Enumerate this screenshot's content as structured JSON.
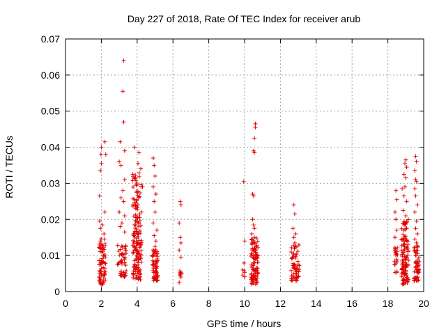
{
  "chart_data": {
    "type": "scatter",
    "title": "Day 227 of 2018, Rate Of TEC Index for receiver arub",
    "xlabel": "GPS time / hours",
    "ylabel": "ROTI / TECUs",
    "xlim": [
      0,
      20
    ],
    "ylim": [
      0,
      0.07
    ],
    "xticks": [
      0,
      2,
      4,
      6,
      8,
      10,
      12,
      14,
      16,
      18,
      20
    ],
    "yticks": [
      0,
      0.01,
      0.02,
      0.03,
      0.04,
      0.05,
      0.06,
      0.07
    ],
    "xtick_labels": [
      "0",
      "2",
      "4",
      "6",
      "8",
      "10",
      "12",
      "14",
      "16",
      "18",
      "20"
    ],
    "ytick_labels": [
      "0",
      "0.01",
      "0.02",
      "0.03",
      "0.04",
      "0.05",
      "0.06",
      "0.07"
    ],
    "grid": true,
    "marker": "+",
    "color": "#e00000",
    "clusters": [
      {
        "x": [
          1.85,
          2.25
        ],
        "y": [
          0.002,
          0.015
        ],
        "dense": 70,
        "outliers": [
          [
            1.9,
            0.0265
          ],
          [
            1.95,
            0.0335
          ],
          [
            2.0,
            0.0355
          ],
          [
            1.98,
            0.038
          ],
          [
            2.0,
            0.04
          ],
          [
            2.2,
            0.0415
          ],
          [
            2.25,
            0.038
          ],
          [
            2.2,
            0.022
          ],
          [
            1.9,
            0.0195
          ],
          [
            2.05,
            0.0185
          ],
          [
            1.95,
            0.0175
          ],
          [
            2.15,
            0.016
          ]
        ]
      },
      {
        "x": [
          2.9,
          3.4
        ],
        "y": [
          0.004,
          0.013
        ],
        "dense": 45,
        "outliers": [
          [
            3.25,
            0.064
          ],
          [
            3.2,
            0.0555
          ],
          [
            3.25,
            0.047
          ],
          [
            3.05,
            0.0415
          ],
          [
            3.3,
            0.039
          ],
          [
            3.0,
            0.036
          ],
          [
            3.1,
            0.035
          ],
          [
            3.3,
            0.031
          ],
          [
            3.2,
            0.028
          ],
          [
            3.1,
            0.026
          ],
          [
            3.25,
            0.025
          ],
          [
            3.0,
            0.022
          ],
          [
            3.3,
            0.021
          ],
          [
            3.15,
            0.019
          ],
          [
            3.05,
            0.018
          ],
          [
            3.3,
            0.0165
          ]
        ]
      },
      {
        "x": [
          3.75,
          4.25
        ],
        "y": [
          0.003,
          0.033
        ],
        "dense": 160,
        "outliers": [
          [
            3.85,
            0.04
          ],
          [
            4.1,
            0.0385
          ],
          [
            4.05,
            0.0355
          ],
          [
            4.2,
            0.034
          ],
          [
            4.3,
            0.029
          ]
        ]
      },
      {
        "x": [
          4.85,
          5.15
        ],
        "y": [
          0.003,
          0.012
        ],
        "dense": 60,
        "outliers": [
          [
            4.9,
            0.037
          ],
          [
            4.95,
            0.035
          ],
          [
            5.0,
            0.032
          ],
          [
            4.9,
            0.029
          ],
          [
            5.05,
            0.027
          ],
          [
            4.95,
            0.025
          ],
          [
            5.0,
            0.022
          ],
          [
            4.9,
            0.019
          ],
          [
            5.1,
            0.017
          ],
          [
            4.95,
            0.0155
          ],
          [
            5.05,
            0.014
          ],
          [
            5.0,
            0.0125
          ]
        ]
      },
      {
        "x": [
          6.35,
          6.5
        ],
        "y": [
          0.004,
          0.007
        ],
        "dense": 6,
        "outliers": [
          [
            6.4,
            0.025
          ],
          [
            6.45,
            0.024
          ],
          [
            6.35,
            0.019
          ],
          [
            6.4,
            0.015
          ],
          [
            6.45,
            0.0135
          ],
          [
            6.35,
            0.0115
          ],
          [
            6.45,
            0.0095
          ],
          [
            6.4,
            0.0045
          ],
          [
            6.35,
            0.0025
          ]
        ]
      },
      {
        "x": [
          9.9,
          10.05
        ],
        "y": [
          0.004,
          0.008
        ],
        "dense": 5,
        "outliers": [
          [
            9.95,
            0.0305
          ],
          [
            10.0,
            0.014
          ],
          [
            9.9,
            0.006
          ]
        ]
      },
      {
        "x": [
          10.35,
          10.75
        ],
        "y": [
          0.002,
          0.015
        ],
        "dense": 95,
        "outliers": [
          [
            10.6,
            0.0465
          ],
          [
            10.6,
            0.0455
          ],
          [
            10.55,
            0.0425
          ],
          [
            10.5,
            0.039
          ],
          [
            10.55,
            0.0385
          ],
          [
            10.45,
            0.027
          ],
          [
            10.5,
            0.0265
          ],
          [
            10.45,
            0.02
          ],
          [
            10.5,
            0.0185
          ],
          [
            10.55,
            0.0175
          ],
          [
            10.4,
            0.016
          ]
        ]
      },
      {
        "x": [
          12.6,
          13.05
        ],
        "y": [
          0.003,
          0.013
        ],
        "dense": 60,
        "outliers": [
          [
            12.75,
            0.024
          ],
          [
            12.8,
            0.0215
          ],
          [
            12.7,
            0.0175
          ],
          [
            12.85,
            0.016
          ],
          [
            12.75,
            0.015
          ],
          [
            12.8,
            0.0135
          ]
        ]
      },
      {
        "x": [
          18.35,
          18.55
        ],
        "y": [
          0.005,
          0.013
        ],
        "dense": 20,
        "outliers": [
          [
            18.45,
            0.028
          ],
          [
            18.5,
            0.0255
          ],
          [
            18.4,
            0.022
          ],
          [
            18.45,
            0.02
          ],
          [
            18.5,
            0.017
          ],
          [
            18.4,
            0.015
          ]
        ]
      },
      {
        "x": [
          18.75,
          19.15
        ],
        "y": [
          0.002,
          0.02
        ],
        "dense": 110,
        "outliers": [
          [
            19.0,
            0.0365
          ],
          [
            18.95,
            0.0355
          ],
          [
            19.05,
            0.0345
          ],
          [
            18.9,
            0.0325
          ],
          [
            19.0,
            0.0315
          ],
          [
            18.95,
            0.029
          ],
          [
            18.8,
            0.0285
          ],
          [
            18.9,
            0.0265
          ],
          [
            19.05,
            0.025
          ],
          [
            18.85,
            0.0225
          ],
          [
            19.0,
            0.021
          ]
        ]
      },
      {
        "x": [
          19.45,
          19.75
        ],
        "y": [
          0.003,
          0.013
        ],
        "dense": 55,
        "outliers": [
          [
            19.55,
            0.0375
          ],
          [
            19.6,
            0.036
          ],
          [
            19.5,
            0.0335
          ],
          [
            19.55,
            0.031
          ],
          [
            19.6,
            0.0305
          ],
          [
            19.5,
            0.0285
          ],
          [
            19.55,
            0.0265
          ],
          [
            19.65,
            0.024
          ],
          [
            19.5,
            0.022
          ],
          [
            19.6,
            0.0195
          ],
          [
            19.55,
            0.0175
          ],
          [
            19.65,
            0.016
          ],
          [
            19.5,
            0.0145
          ],
          [
            19.6,
            0.0135
          ]
        ]
      }
    ]
  }
}
